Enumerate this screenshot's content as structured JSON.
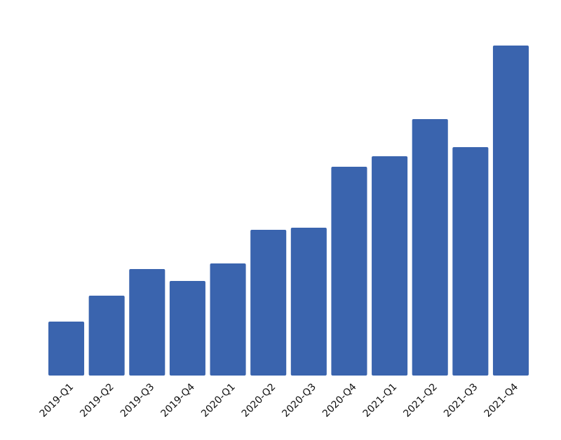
{
  "chart_data": {
    "type": "bar",
    "categories": [
      "2019-Q1",
      "2019-Q2",
      "2019-Q3",
      "2019-Q4",
      "2020-Q1",
      "2020-Q2",
      "2020-Q3",
      "2020-Q4",
      "2021-Q1",
      "2021-Q2",
      "2021-Q3",
      "2021-Q4"
    ],
    "values": [
      77,
      114,
      152,
      135,
      160,
      208,
      211,
      298,
      313,
      366,
      326,
      471
    ],
    "color": "#3a64ae",
    "ylim": [
      0,
      471
    ]
  }
}
